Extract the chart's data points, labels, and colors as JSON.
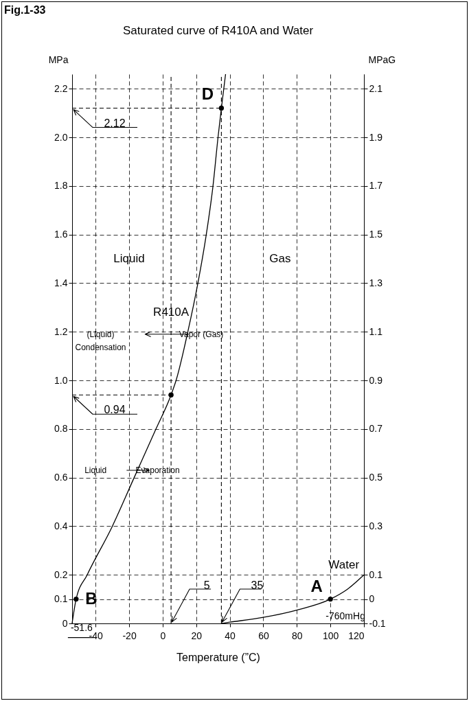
{
  "chart_data": {
    "type": "line",
    "title": "Fig.1-33",
    "subtitle": "Saturated curve of R410A and Water",
    "xlabel": "Temperature (”C)",
    "ylabel": "MPa",
    "y2label": "MPaG",
    "series": [
      {
        "name": "R410A",
        "color": "#000000",
        "x": [
          -54,
          -51.6,
          -45,
          -30,
          -17,
          -4,
          5,
          8,
          15,
          21,
          26,
          30,
          33,
          35,
          37.5
        ],
        "values": [
          0,
          0.1,
          0.2,
          0.4,
          0.6,
          0.8,
          0.94,
          1.0,
          1.2,
          1.4,
          1.6,
          1.8,
          2.0,
          2.12,
          2.26
        ]
      },
      {
        "name": "Water",
        "color": "#000000",
        "x": [
          35,
          40,
          60,
          80,
          100,
          110,
          120
        ],
        "values": [
          0,
          0.005,
          0.025,
          0.055,
          0.1,
          0.14,
          0.2
        ]
      },
      {
        "type": "scatter",
        "color": "#000000",
        "x": [
          -51.6,
          5,
          35,
          100
        ],
        "values": [
          0.1,
          0.94,
          2.12,
          0.1
        ]
      }
    ],
    "xlim": [
      -54,
      120
    ],
    "xticks": [
      -40,
      -20,
      0,
      20,
      40,
      60,
      80,
      100,
      120
    ],
    "ylim": [
      0,
      2.26
    ],
    "yticks": [
      0,
      0.1,
      0.2,
      0.4,
      0.6,
      0.8,
      {
        "value": 1,
        "label": "1.0"
      },
      1.2,
      1.4,
      1.6,
      1.8,
      {
        "value": 2,
        "label": "2.0"
      },
      2.2
    ],
    "y2lim": [
      -0.1,
      2.16
    ],
    "y2ticks": [
      -0.1,
      0,
      0.1,
      0.3,
      0.5,
      0.7,
      0.9,
      1.1,
      1.3,
      1.5,
      1.7,
      1.9,
      2.1
    ],
    "grid": true,
    "ref_lines": [
      {
        "axis": "y",
        "value": 2.12,
        "label": "2.12",
        "line_style": "dashed"
      },
      {
        "axis": "y",
        "value": 0.94,
        "label": "0.94",
        "line_style": "dashed"
      },
      {
        "axis": "x",
        "value": 5,
        "label": "5",
        "line_style": "dashed"
      },
      {
        "axis": "x",
        "value": 35,
        "label": "35",
        "line_style": "dashed"
      }
    ],
    "annotations": [
      "Liquid",
      "Gas",
      "(Liquid)",
      "Condensation",
      "Vapor (Gas)",
      "Liquid",
      "Evaporation",
      "-760mHg",
      {
        "text": "B",
        "x": -51.6,
        "y": 0.1
      },
      {
        "text": "D",
        "x": 35,
        "y": 2.12
      },
      {
        "text": "A",
        "x": 100,
        "y": 0.1
      },
      {
        "text": "-51.6",
        "x": -51.6,
        "y": 0.1
      }
    ]
  }
}
